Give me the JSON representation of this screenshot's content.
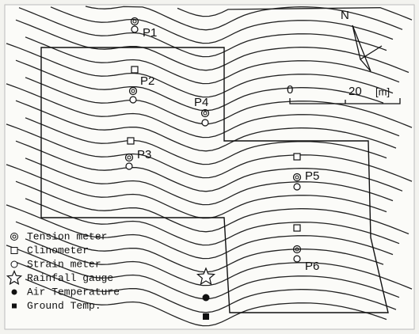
{
  "map": {
    "north_label": "N",
    "scale": {
      "zero": "0",
      "length": "20",
      "unit": "[m]"
    },
    "points": [
      {
        "label": "P1"
      },
      {
        "label": "P2"
      },
      {
        "label": "P3"
      },
      {
        "label": "P4"
      },
      {
        "label": "P5"
      },
      {
        "label": "P6"
      }
    ],
    "legend": [
      "Tension meter",
      "Clinometer",
      "Strain meter",
      "Rainfall gauge",
      "Air Temperature",
      "Ground Temp."
    ]
  }
}
